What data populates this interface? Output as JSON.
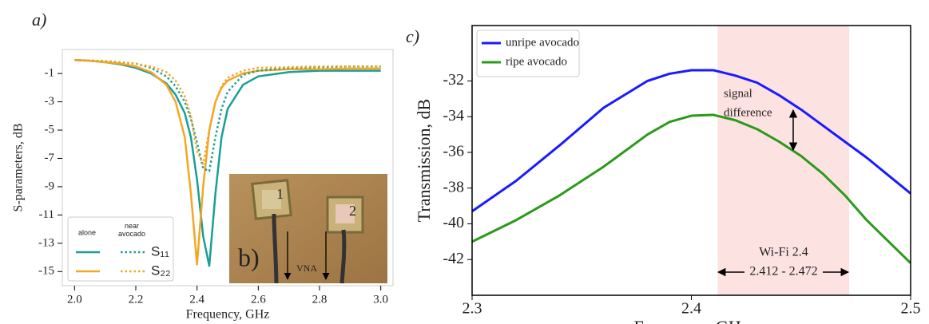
{
  "chart_data": [
    {
      "type": "line",
      "panel_label": "a)",
      "x_label": "Frequency, GHz",
      "y_label": "S-parameters, dB",
      "x": [
        2.0,
        2.05,
        2.1,
        2.15,
        2.2,
        2.25,
        2.3,
        2.33,
        2.36,
        2.38,
        2.4,
        2.42,
        2.44,
        2.46,
        2.48,
        2.5,
        2.55,
        2.6,
        2.7,
        2.8,
        2.9,
        3.0
      ],
      "series": [
        {
          "name": "S₁₁",
          "style": "solid",
          "color": "#1a9e96",
          "values": [
            -0.05,
            -0.1,
            -0.2,
            -0.35,
            -0.6,
            -1.0,
            -1.7,
            -2.5,
            -3.8,
            -5.5,
            -8.5,
            -12.5,
            -14.6,
            -9.5,
            -5.5,
            -3.5,
            -1.8,
            -1.2,
            -0.9,
            -0.8,
            -0.8,
            -0.8
          ]
        },
        {
          "name": "S₂₂",
          "style": "solid",
          "color": "#f5a623",
          "values": [
            -0.05,
            -0.1,
            -0.2,
            -0.3,
            -0.5,
            -0.9,
            -1.8,
            -3.0,
            -5.5,
            -9.5,
            -14.5,
            -9.0,
            -5.0,
            -3.0,
            -2.0,
            -1.5,
            -1.0,
            -0.8,
            -0.7,
            -0.7,
            -0.65,
            -0.65
          ]
        },
        {
          "name": "S₁₁",
          "style": "dotted",
          "color": "#1a9e96",
          "values": [
            -0.05,
            -0.08,
            -0.12,
            -0.2,
            -0.3,
            -0.6,
            -1.2,
            -1.9,
            -3.0,
            -4.2,
            -5.9,
            -7.7,
            -7.9,
            -5.5,
            -3.5,
            -2.3,
            -1.1,
            -0.8,
            -0.6,
            -0.55,
            -0.5,
            -0.5
          ]
        },
        {
          "name": "S₂₂",
          "style": "dotted",
          "color": "#f5a623",
          "values": [
            -0.05,
            -0.08,
            -0.12,
            -0.2,
            -0.3,
            -0.5,
            -0.9,
            -1.5,
            -2.6,
            -4.0,
            -6.5,
            -7.4,
            -5.0,
            -3.0,
            -1.9,
            -1.3,
            -0.8,
            -0.6,
            -0.55,
            -0.5,
            -0.5,
            -0.5
          ]
        }
      ],
      "legend_headers": [
        "alone",
        "near avocado"
      ],
      "legend_position": "lower left",
      "xlim": [
        1.96,
        3.04
      ],
      "ylim": [
        -16,
        0.7
      ],
      "xticks": [
        {
          "value": 2.0,
          "label": "2.0"
        },
        {
          "value": 2.2,
          "label": "2.2"
        },
        {
          "value": 2.4,
          "label": "2.4"
        },
        {
          "value": 2.6,
          "label": "2.6"
        },
        {
          "value": 2.8,
          "label": "2.8"
        },
        {
          "value": 3.0,
          "label": "3.0"
        }
      ],
      "yticks": [
        -1,
        -3,
        -5,
        -7,
        -9,
        -11,
        -13,
        -15
      ],
      "frame_color": "#cccccc"
    },
    {
      "type": "line",
      "panel_label": "c)",
      "x_label": "Frequency, GHz",
      "y_label": "Transmission, dB",
      "x": [
        2.3,
        2.32,
        2.34,
        2.36,
        2.38,
        2.39,
        2.4,
        2.41,
        2.42,
        2.43,
        2.44,
        2.45,
        2.46,
        2.47,
        2.48,
        2.49,
        2.5
      ],
      "series": [
        {
          "name": "unripe avocado",
          "style": "solid",
          "color": "#1a1aff",
          "values": [
            -39.3,
            -37.6,
            -35.6,
            -33.5,
            -32.0,
            -31.6,
            -31.4,
            -31.4,
            -31.7,
            -32.1,
            -32.8,
            -33.6,
            -34.5,
            -35.4,
            -36.3,
            -37.3,
            -38.3
          ]
        },
        {
          "name": "ripe avocado",
          "style": "solid",
          "color": "#2a9a1a",
          "values": [
            -41.0,
            -39.8,
            -38.4,
            -36.8,
            -35.0,
            -34.3,
            -33.95,
            -33.9,
            -34.2,
            -34.7,
            -35.4,
            -36.2,
            -37.2,
            -38.4,
            -39.8,
            -41.0,
            -42.2
          ]
        }
      ],
      "legend_position": "upper left",
      "shaded_region": {
        "x": [
          2.412,
          2.472
        ],
        "color": "#fde2e2"
      },
      "annotations": [
        "signal",
        "difference",
        "Wi-Fi 2.4",
        "2.412 - 2.472"
      ],
      "xlim": [
        2.3,
        2.5
      ],
      "ylim": [
        -44,
        -28.9
      ],
      "xticks": [
        2.3,
        2.4,
        2.5
      ],
      "yticks": [
        -32,
        -34,
        -36,
        -38,
        -40,
        -42
      ],
      "frame_color": "#000000"
    }
  ],
  "photo": {
    "label": "b)",
    "antenna_labels": [
      "1",
      "2"
    ],
    "cable_label": "VNA"
  }
}
